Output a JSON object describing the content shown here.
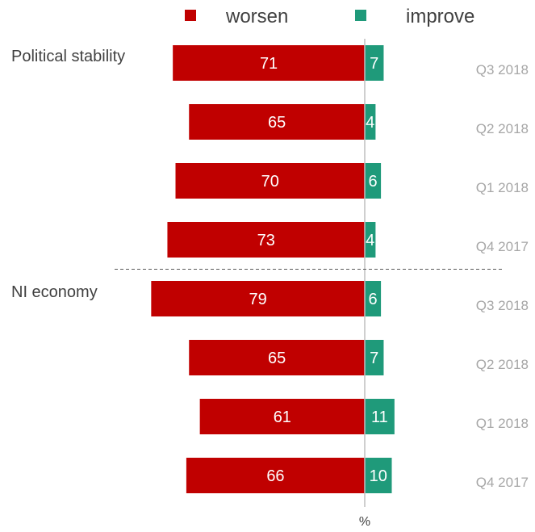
{
  "chart_data": {
    "type": "bar",
    "orientation": "diverging-horizontal",
    "legend": {
      "placement": "top",
      "items": [
        {
          "label": "worsen",
          "color": "#C00000"
        },
        {
          "label": "improve",
          "color": "#1F9A7A"
        }
      ]
    },
    "xlabel": "%",
    "groups": [
      {
        "label": "Political stability",
        "rows": [
          {
            "period": "Q3 2018",
            "worsen": 71,
            "improve": 7
          },
          {
            "period": "Q2 2018",
            "worsen": 65,
            "improve": 4
          },
          {
            "period": "Q1 2018",
            "worsen": 70,
            "improve": 6
          },
          {
            "period": "Q4 2017",
            "worsen": 73,
            "improve": 4
          }
        ]
      },
      {
        "label": "NI economy",
        "rows": [
          {
            "period": "Q3 2018",
            "worsen": 79,
            "improve": 6
          },
          {
            "period": "Q2 2018",
            "worsen": 65,
            "improve": 7
          },
          {
            "period": "Q1 2018",
            "worsen": 61,
            "improve": 11
          },
          {
            "period": "Q4 2017",
            "worsen": 66,
            "improve": 10
          }
        ]
      }
    ],
    "colors": {
      "worsen": "#C00000",
      "improve": "#1F9A7A",
      "period_label": "#A6A6A6",
      "group_label": "#404040",
      "axis": "#BFBFBF",
      "separator": "#595959"
    }
  }
}
